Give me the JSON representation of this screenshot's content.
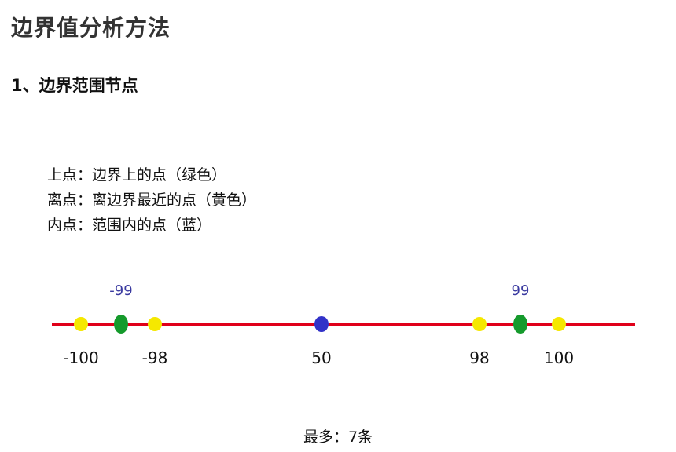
{
  "header": {
    "title": "边界值分析方法"
  },
  "section": {
    "heading": "1、边界范围节点"
  },
  "legend": [
    {
      "label": "上点：边界上的点（绿色）"
    },
    {
      "label": "离点：离边界最近的点（黄色）"
    },
    {
      "label": "内点：范围内的点（蓝）"
    }
  ],
  "colors": {
    "axis": "#e0001a",
    "on_point": "#159a2c",
    "off_point": "#f5e800",
    "in_point": "#3232c8",
    "upper_label": "#3a3aa0"
  },
  "number_line": {
    "points": [
      {
        "value": -100,
        "kind": "off_point",
        "label": "-100"
      },
      {
        "value": -99,
        "kind": "on_point",
        "label": "-99"
      },
      {
        "value": -98,
        "kind": "off_point",
        "label": "-98"
      },
      {
        "value": 50,
        "kind": "in_point",
        "label": "50"
      },
      {
        "value": 98,
        "kind": "off_point",
        "label": "98"
      },
      {
        "value": 99,
        "kind": "on_point",
        "label": "99"
      },
      {
        "value": 100,
        "kind": "off_point",
        "label": "100"
      }
    ]
  },
  "footer": {
    "summary": "最多：7条"
  }
}
